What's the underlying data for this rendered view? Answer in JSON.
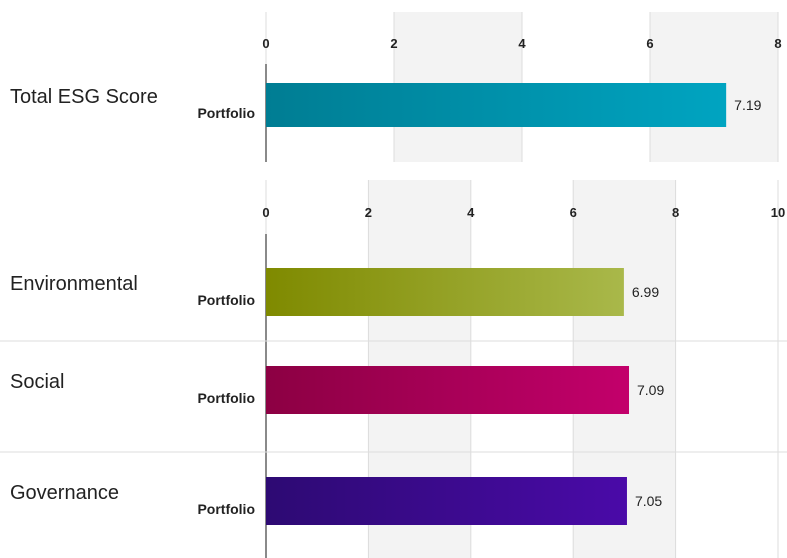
{
  "chart_data": [
    {
      "type": "bar",
      "orientation": "horizontal",
      "grid": true,
      "xlim": [
        0,
        8
      ],
      "ticks": [
        "0",
        "2",
        "4",
        "6",
        "8"
      ],
      "rows": [
        {
          "label": "Total ESG Score",
          "categories": [
            "Portfolio"
          ],
          "values": [
            7.19
          ],
          "value_labels": [
            "7.19"
          ],
          "colors": [
            "#007d93",
            "#00a4c1"
          ]
        }
      ]
    },
    {
      "type": "bar",
      "orientation": "horizontal",
      "grid": true,
      "xlim": [
        0,
        10
      ],
      "ticks": [
        "0",
        "2",
        "4",
        "6",
        "8",
        "10"
      ],
      "rows": [
        {
          "label": "Environmental",
          "categories": [
            "Portfolio"
          ],
          "values": [
            6.99
          ],
          "value_labels": [
            "6.99"
          ],
          "colors": [
            "#7f8a00",
            "#a9b84a"
          ]
        },
        {
          "label": "Social",
          "categories": [
            "Portfolio"
          ],
          "values": [
            7.09
          ],
          "value_labels": [
            "7.09"
          ],
          "colors": [
            "#8c0043",
            "#c3006b"
          ]
        },
        {
          "label": "Governance",
          "categories": [
            "Portfolio"
          ],
          "values": [
            7.05
          ],
          "value_labels": [
            "7.05"
          ],
          "colors": [
            "#2d0a73",
            "#4a0aa8"
          ]
        }
      ]
    }
  ]
}
